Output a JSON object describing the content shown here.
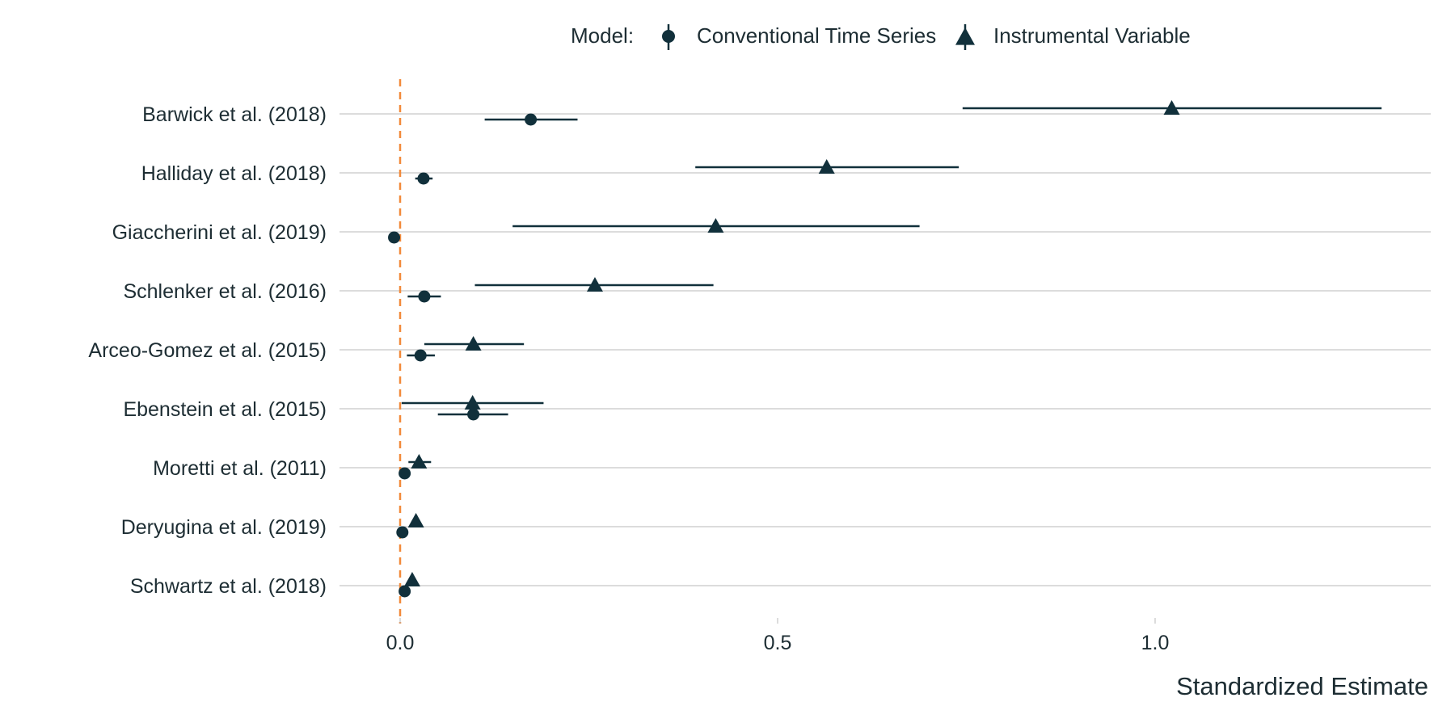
{
  "chart_data": {
    "type": "forest",
    "title": "",
    "xlabel": "Standardized Estimate",
    "ylabel": "",
    "xlim": [
      -0.08,
      1.37
    ],
    "xticks": [
      0.0,
      0.5,
      1.0
    ],
    "xtick_labels": [
      "0.0",
      "0.5",
      "1.0"
    ],
    "reference_line": {
      "x": 0,
      "style": "dashed",
      "color": "#f28a3a"
    },
    "grid": "horizontal",
    "legend": {
      "title": "Model:",
      "position": "top",
      "entries": [
        {
          "name": "Conventional Time Series",
          "marker": "circle"
        },
        {
          "name": "Instrumental Variable",
          "marker": "triangle"
        }
      ]
    },
    "colors": {
      "points": "#11303b",
      "grid": "#b8b8b8",
      "reference": "#f28a3a"
    },
    "categories": [
      "Barwick et al. (2018)",
      "Halliday et al. (2018)",
      "Giaccherini et al. (2019)",
      "Schlenker et al. (2016)",
      "Arceo-Gomez et al. (2015)",
      "Ebenstein et al. (2015)",
      "Moretti et al. (2011)",
      "Deryugina et al. (2019)",
      "Schwartz et al. (2018)"
    ],
    "series": [
      {
        "name": "Conventional Time Series",
        "marker": "circle",
        "estimates": [
          0.173,
          0.031,
          -0.008,
          0.032,
          0.027,
          0.097,
          0.006,
          0.003,
          0.006
        ],
        "ci_low": [
          0.112,
          0.02,
          -0.008,
          0.01,
          0.009,
          0.05,
          0.006,
          0.003,
          0.006
        ],
        "ci_high": [
          0.235,
          0.043,
          -0.008,
          0.054,
          0.046,
          0.143,
          0.006,
          0.003,
          0.006
        ]
      },
      {
        "name": "Instrumental Variable",
        "marker": "triangle",
        "estimates": [
          1.022,
          0.565,
          0.418,
          0.258,
          0.097,
          0.096,
          0.025,
          0.021,
          0.016
        ],
        "ci_low": [
          0.745,
          0.391,
          0.149,
          0.099,
          0.032,
          0.002,
          0.011,
          0.021,
          0.016
        ],
        "ci_high": [
          1.3,
          0.74,
          0.688,
          0.415,
          0.164,
          0.19,
          0.041,
          0.021,
          0.016
        ]
      }
    ]
  }
}
